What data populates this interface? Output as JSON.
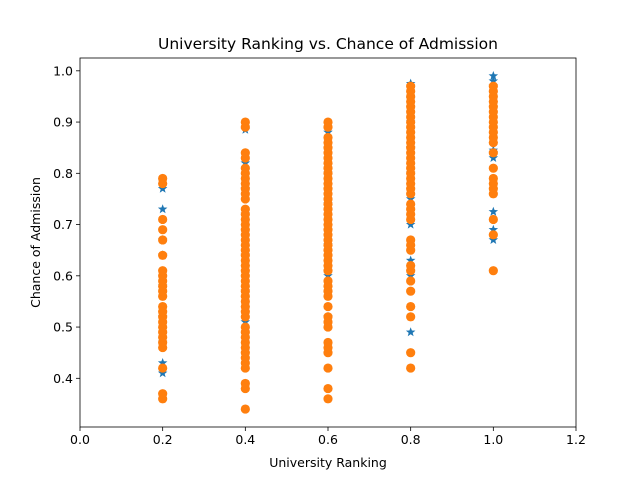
{
  "chart_data": {
    "type": "scatter",
    "title": "University Ranking vs. Chance of Admission",
    "xlabel": "University Ranking",
    "ylabel": "Chance of Admission",
    "xlim": [
      0.0,
      1.2
    ],
    "ylim": [
      0.305,
      1.025
    ],
    "x_ticks": [
      0.0,
      0.2,
      0.4,
      0.6,
      0.8,
      1.0,
      1.2
    ],
    "x_tick_labels": [
      "0.0",
      "0.2",
      "0.4",
      "0.6",
      "0.8",
      "1.0",
      "1.2"
    ],
    "y_ticks": [
      0.4,
      0.5,
      0.6,
      0.7,
      0.8,
      0.9,
      1.0
    ],
    "y_tick_labels": [
      "0.4",
      "0.5",
      "0.6",
      "0.7",
      "0.8",
      "0.9",
      "1.0"
    ],
    "grid": false,
    "legend": "none",
    "colors": {
      "series_a": "#1f77b4",
      "series_b": "#ff7f0e"
    },
    "series": [
      {
        "marker": "star",
        "color": "#1f77b4",
        "points": [
          [
            0.2,
            0.41
          ],
          [
            0.2,
            0.43
          ],
          [
            0.2,
            0.47
          ],
          [
            0.2,
            0.52
          ],
          [
            0.2,
            0.58
          ],
          [
            0.2,
            0.64
          ],
          [
            0.2,
            0.67
          ],
          [
            0.2,
            0.73
          ],
          [
            0.2,
            0.77
          ],
          [
            0.4,
            0.51
          ],
          [
            0.4,
            0.57
          ],
          [
            0.4,
            0.64
          ],
          [
            0.4,
            0.72
          ],
          [
            0.4,
            0.77
          ],
          [
            0.4,
            0.82
          ],
          [
            0.4,
            0.885
          ],
          [
            0.6,
            0.52
          ],
          [
            0.6,
            0.6
          ],
          [
            0.6,
            0.66
          ],
          [
            0.6,
            0.74
          ],
          [
            0.6,
            0.8
          ],
          [
            0.6,
            0.88
          ],
          [
            0.8,
            0.49
          ],
          [
            0.8,
            0.6
          ],
          [
            0.8,
            0.63
          ],
          [
            0.8,
            0.7
          ],
          [
            0.8,
            0.75
          ],
          [
            0.8,
            0.8
          ],
          [
            0.8,
            0.85
          ],
          [
            0.8,
            0.9
          ],
          [
            0.8,
            0.945
          ],
          [
            0.8,
            0.975
          ],
          [
            1.0,
            0.67
          ],
          [
            1.0,
            0.69
          ],
          [
            1.0,
            0.725
          ],
          [
            1.0,
            0.83
          ],
          [
            1.0,
            0.84
          ],
          [
            1.0,
            0.845
          ],
          [
            1.0,
            0.97
          ],
          [
            1.0,
            0.98
          ],
          [
            1.0,
            0.99
          ]
        ]
      },
      {
        "marker": "circle",
        "color": "#ff7f0e",
        "points": [
          [
            0.2,
            0.36
          ],
          [
            0.2,
            0.37
          ],
          [
            0.2,
            0.42
          ],
          [
            0.2,
            0.46
          ],
          [
            0.2,
            0.47
          ],
          [
            0.2,
            0.48
          ],
          [
            0.2,
            0.49
          ],
          [
            0.2,
            0.5
          ],
          [
            0.2,
            0.51
          ],
          [
            0.2,
            0.52
          ],
          [
            0.2,
            0.53
          ],
          [
            0.2,
            0.54
          ],
          [
            0.2,
            0.56
          ],
          [
            0.2,
            0.57
          ],
          [
            0.2,
            0.58
          ],
          [
            0.2,
            0.59
          ],
          [
            0.2,
            0.6
          ],
          [
            0.2,
            0.61
          ],
          [
            0.2,
            0.64
          ],
          [
            0.2,
            0.67
          ],
          [
            0.2,
            0.69
          ],
          [
            0.2,
            0.71
          ],
          [
            0.2,
            0.78
          ],
          [
            0.2,
            0.79
          ],
          [
            0.4,
            0.34
          ],
          [
            0.4,
            0.38
          ],
          [
            0.4,
            0.39
          ],
          [
            0.4,
            0.42
          ],
          [
            0.4,
            0.43
          ],
          [
            0.4,
            0.44
          ],
          [
            0.4,
            0.45
          ],
          [
            0.4,
            0.46
          ],
          [
            0.4,
            0.47
          ],
          [
            0.4,
            0.48
          ],
          [
            0.4,
            0.49
          ],
          [
            0.4,
            0.5
          ],
          [
            0.4,
            0.52
          ],
          [
            0.4,
            0.53
          ],
          [
            0.4,
            0.54
          ],
          [
            0.4,
            0.55
          ],
          [
            0.4,
            0.56
          ],
          [
            0.4,
            0.57
          ],
          [
            0.4,
            0.58
          ],
          [
            0.4,
            0.59
          ],
          [
            0.4,
            0.6
          ],
          [
            0.4,
            0.61
          ],
          [
            0.4,
            0.62
          ],
          [
            0.4,
            0.63
          ],
          [
            0.4,
            0.64
          ],
          [
            0.4,
            0.65
          ],
          [
            0.4,
            0.66
          ],
          [
            0.4,
            0.67
          ],
          [
            0.4,
            0.68
          ],
          [
            0.4,
            0.69
          ],
          [
            0.4,
            0.7
          ],
          [
            0.4,
            0.71
          ],
          [
            0.4,
            0.72
          ],
          [
            0.4,
            0.73
          ],
          [
            0.4,
            0.75
          ],
          [
            0.4,
            0.76
          ],
          [
            0.4,
            0.77
          ],
          [
            0.4,
            0.78
          ],
          [
            0.4,
            0.79
          ],
          [
            0.4,
            0.8
          ],
          [
            0.4,
            0.81
          ],
          [
            0.4,
            0.83
          ],
          [
            0.4,
            0.84
          ],
          [
            0.4,
            0.89
          ],
          [
            0.4,
            0.9
          ],
          [
            0.6,
            0.36
          ],
          [
            0.6,
            0.38
          ],
          [
            0.6,
            0.42
          ],
          [
            0.6,
            0.45
          ],
          [
            0.6,
            0.46
          ],
          [
            0.6,
            0.47
          ],
          [
            0.6,
            0.5
          ],
          [
            0.6,
            0.51
          ],
          [
            0.6,
            0.52
          ],
          [
            0.6,
            0.54
          ],
          [
            0.6,
            0.56
          ],
          [
            0.6,
            0.57
          ],
          [
            0.6,
            0.58
          ],
          [
            0.6,
            0.59
          ],
          [
            0.6,
            0.61
          ],
          [
            0.6,
            0.62
          ],
          [
            0.6,
            0.63
          ],
          [
            0.6,
            0.64
          ],
          [
            0.6,
            0.65
          ],
          [
            0.6,
            0.66
          ],
          [
            0.6,
            0.67
          ],
          [
            0.6,
            0.68
          ],
          [
            0.6,
            0.69
          ],
          [
            0.6,
            0.7
          ],
          [
            0.6,
            0.71
          ],
          [
            0.6,
            0.72
          ],
          [
            0.6,
            0.73
          ],
          [
            0.6,
            0.74
          ],
          [
            0.6,
            0.75
          ],
          [
            0.6,
            0.76
          ],
          [
            0.6,
            0.77
          ],
          [
            0.6,
            0.78
          ],
          [
            0.6,
            0.79
          ],
          [
            0.6,
            0.8
          ],
          [
            0.6,
            0.81
          ],
          [
            0.6,
            0.82
          ],
          [
            0.6,
            0.83
          ],
          [
            0.6,
            0.84
          ],
          [
            0.6,
            0.85
          ],
          [
            0.6,
            0.86
          ],
          [
            0.6,
            0.87
          ],
          [
            0.6,
            0.89
          ],
          [
            0.6,
            0.9
          ],
          [
            0.8,
            0.42
          ],
          [
            0.8,
            0.45
          ],
          [
            0.8,
            0.52
          ],
          [
            0.8,
            0.54
          ],
          [
            0.8,
            0.57
          ],
          [
            0.8,
            0.59
          ],
          [
            0.8,
            0.61
          ],
          [
            0.8,
            0.62
          ],
          [
            0.8,
            0.65
          ],
          [
            0.8,
            0.66
          ],
          [
            0.8,
            0.67
          ],
          [
            0.8,
            0.71
          ],
          [
            0.8,
            0.72
          ],
          [
            0.8,
            0.73
          ],
          [
            0.8,
            0.74
          ],
          [
            0.8,
            0.76
          ],
          [
            0.8,
            0.77
          ],
          [
            0.8,
            0.78
          ],
          [
            0.8,
            0.79
          ],
          [
            0.8,
            0.8
          ],
          [
            0.8,
            0.81
          ],
          [
            0.8,
            0.82
          ],
          [
            0.8,
            0.83
          ],
          [
            0.8,
            0.84
          ],
          [
            0.8,
            0.85
          ],
          [
            0.8,
            0.86
          ],
          [
            0.8,
            0.87
          ],
          [
            0.8,
            0.88
          ],
          [
            0.8,
            0.89
          ],
          [
            0.8,
            0.9
          ],
          [
            0.8,
            0.91
          ],
          [
            0.8,
            0.92
          ],
          [
            0.8,
            0.93
          ],
          [
            0.8,
            0.94
          ],
          [
            0.8,
            0.95
          ],
          [
            0.8,
            0.96
          ],
          [
            0.8,
            0.97
          ],
          [
            1.0,
            0.61
          ],
          [
            1.0,
            0.68
          ],
          [
            1.0,
            0.71
          ],
          [
            1.0,
            0.76
          ],
          [
            1.0,
            0.77
          ],
          [
            1.0,
            0.78
          ],
          [
            1.0,
            0.79
          ],
          [
            1.0,
            0.81
          ],
          [
            1.0,
            0.84
          ],
          [
            1.0,
            0.86
          ],
          [
            1.0,
            0.87
          ],
          [
            1.0,
            0.88
          ],
          [
            1.0,
            0.89
          ],
          [
            1.0,
            0.9
          ],
          [
            1.0,
            0.91
          ],
          [
            1.0,
            0.92
          ],
          [
            1.0,
            0.93
          ],
          [
            1.0,
            0.94
          ],
          [
            1.0,
            0.95
          ],
          [
            1.0,
            0.96
          ],
          [
            1.0,
            0.97
          ]
        ]
      }
    ]
  }
}
